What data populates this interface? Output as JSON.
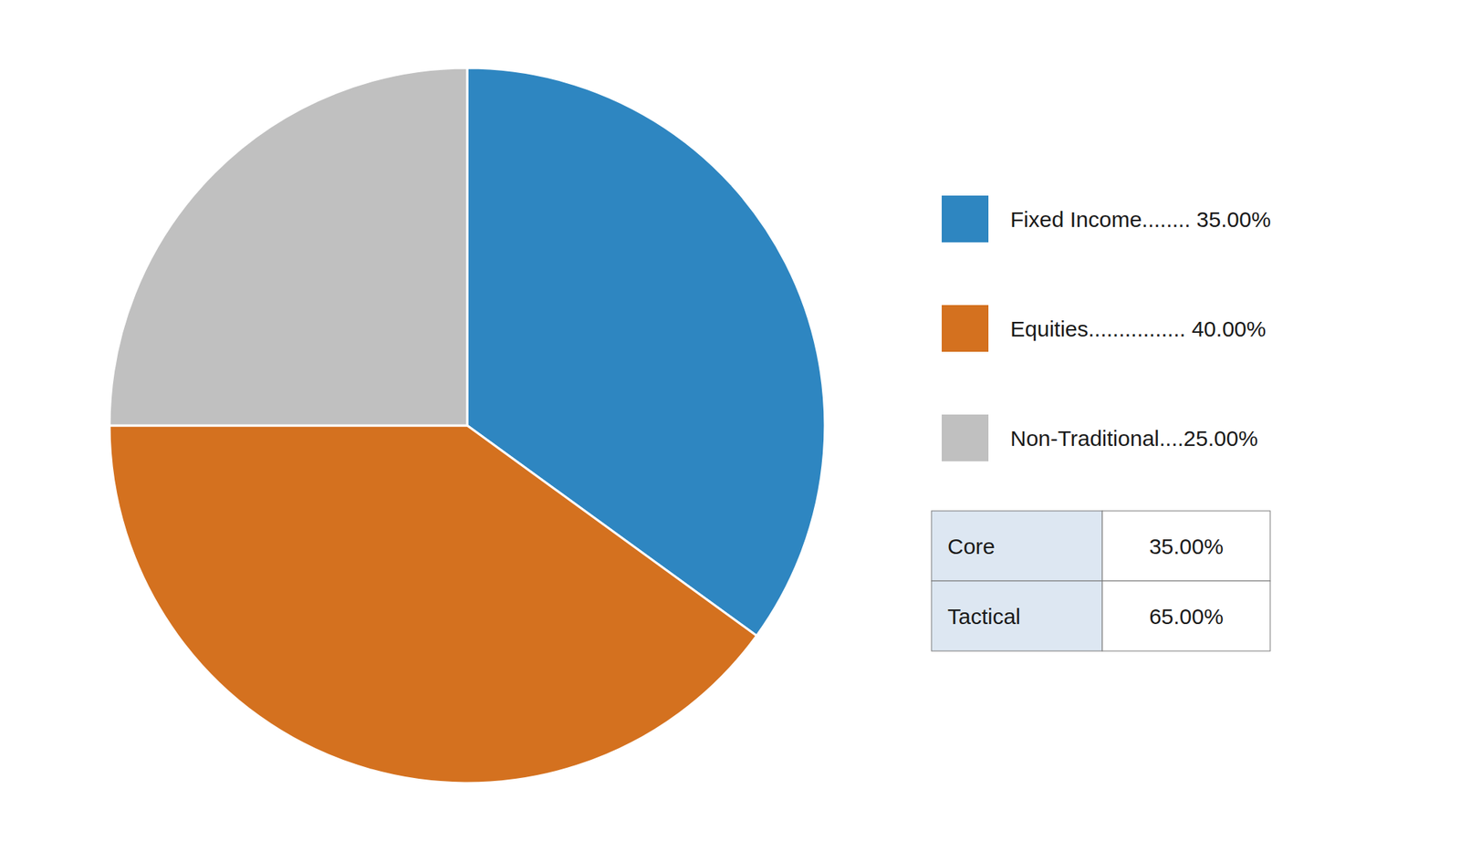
{
  "chart_data": {
    "type": "pie",
    "categories": [
      "Fixed Income........ 35.00%",
      "Equities................ 40.00%",
      "Non-Traditional....25.00%"
    ],
    "values": [
      35.0,
      40.0,
      25.0
    ],
    "colors": [
      "#2E86C1",
      "#D4711F",
      "#C0C0C0"
    ],
    "legend": "right",
    "table": {
      "rows": [
        "Core",
        "Tactical"
      ],
      "values": [
        35.0,
        65.0
      ],
      "value_labels": [
        "35.00%",
        "65.00%"
      ]
    }
  }
}
